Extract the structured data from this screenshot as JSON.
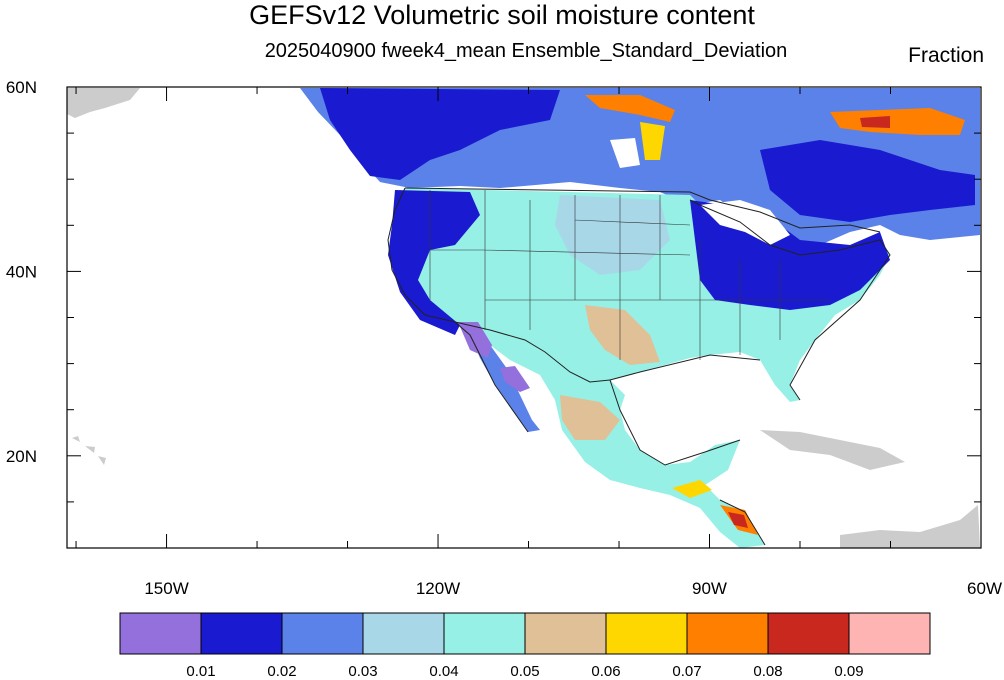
{
  "title": "GEFSv12 Volumetric soil moisture content",
  "subtitle": "2025040900 fweek4_mean Ensemble_Standard_Deviation",
  "units": "Fraction",
  "map": {
    "lon_range": [
      -161,
      -60
    ],
    "lat_range": [
      10,
      60
    ],
    "x_ticks": [
      {
        "value": -150,
        "label": "150W"
      },
      {
        "value": -120,
        "label": "120W"
      },
      {
        "value": -90,
        "label": "90W"
      },
      {
        "value": -60,
        "label": "60W"
      }
    ],
    "y_ticks": [
      {
        "value": 60,
        "label": "60N"
      },
      {
        "value": 40,
        "label": "40N"
      },
      {
        "value": 20,
        "label": "20N"
      }
    ]
  },
  "colorbar": {
    "colors": [
      "#9370DB",
      "#1a1ad1",
      "#5a82e8",
      "#a8d8e8",
      "#96f0e6",
      "#e0c096",
      "#ffd700",
      "#ff7f00",
      "#c8281e",
      "#ffb4b4"
    ],
    "labels": [
      "0.01",
      "0.02",
      "0.03",
      "0.04",
      "0.05",
      "0.06",
      "0.07",
      "0.08",
      "0.09"
    ]
  }
}
